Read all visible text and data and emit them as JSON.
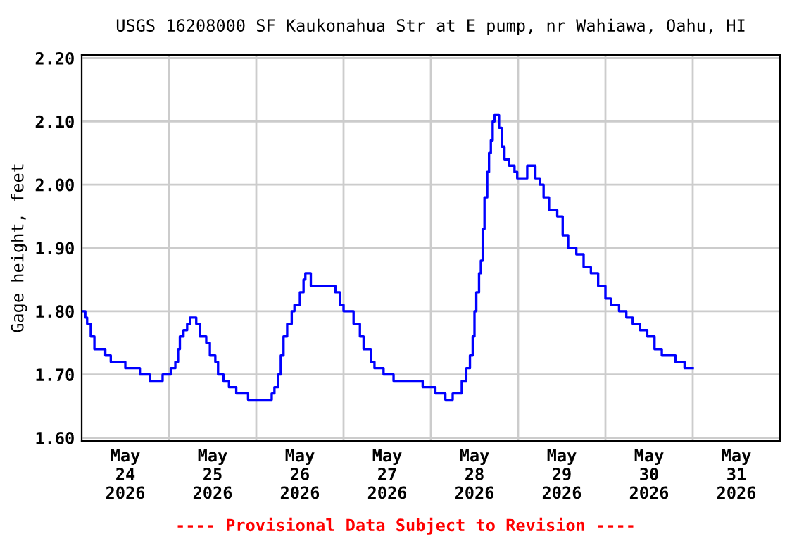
{
  "chart_data": {
    "type": "step",
    "title": "USGS 16208000 SF Kaukonahua Str at E pump, nr Wahiawa, Oahu, HI",
    "ylabel": "Gage height, feet",
    "annotations": [
      "---- Provisional Data Subject to Revision ----"
    ],
    "x": [
      "2026-05-24T00:00",
      "2026-05-24T01:00",
      "2026-05-24T01:30",
      "2026-05-24T02:30",
      "2026-05-24T03:30",
      "2026-05-24T06:15",
      "2026-05-24T06:30",
      "2026-05-24T08:00",
      "2026-05-24T12:00",
      "2026-05-24T15:30",
      "2026-05-24T16:00",
      "2026-05-24T18:45",
      "2026-05-24T22:00",
      "2026-05-24T22:15",
      "2026-05-25T00:15",
      "2026-05-25T00:30",
      "2026-05-25T01:45",
      "2026-05-25T02:30",
      "2026-05-25T03:00",
      "2026-05-25T04:00",
      "2026-05-25T05:00",
      "2026-05-25T05:45",
      "2026-05-25T07:15",
      "2026-05-25T07:30",
      "2026-05-25T08:30",
      "2026-05-25T10:15",
      "2026-05-25T11:15",
      "2026-05-25T12:45",
      "2026-05-25T13:30",
      "2026-05-25T15:00",
      "2026-05-25T16:30",
      "2026-05-25T18:30",
      "2026-05-25T21:45",
      "2026-05-26T00:45",
      "2026-05-26T03:15",
      "2026-05-26T04:15",
      "2026-05-26T05:00",
      "2026-05-26T06:00",
      "2026-05-26T06:45",
      "2026-05-26T07:30",
      "2026-05-26T08:30",
      "2026-05-26T09:45",
      "2026-05-26T10:30",
      "2026-05-26T12:00",
      "2026-05-26T13:00",
      "2026-05-26T13:30",
      "2026-05-26T14:15",
      "2026-05-26T15:00",
      "2026-05-26T21:15",
      "2026-05-26T21:45",
      "2026-05-26T23:00",
      "2026-05-27T00:00",
      "2026-05-27T01:45",
      "2026-05-27T02:45",
      "2026-05-27T04:30",
      "2026-05-27T05:30",
      "2026-05-27T07:30",
      "2026-05-27T08:30",
      "2026-05-27T11:00",
      "2026-05-27T13:45",
      "2026-05-27T19:00",
      "2026-05-27T21:45",
      "2026-05-28T01:15",
      "2026-05-28T04:00",
      "2026-05-28T05:15",
      "2026-05-28T06:00",
      "2026-05-28T07:15",
      "2026-05-28T08:30",
      "2026-05-28T09:45",
      "2026-05-28T10:45",
      "2026-05-28T11:30",
      "2026-05-28T12:00",
      "2026-05-28T12:30",
      "2026-05-28T13:15",
      "2026-05-28T13:45",
      "2026-05-28T14:15",
      "2026-05-28T14:45",
      "2026-05-28T15:30",
      "2026-05-28T16:00",
      "2026-05-28T16:30",
      "2026-05-28T17:00",
      "2026-05-28T17:30",
      "2026-05-28T18:15",
      "2026-05-28T18:45",
      "2026-05-28T19:30",
      "2026-05-28T20:15",
      "2026-05-28T21:30",
      "2026-05-28T23:00",
      "2026-05-28T23:45",
      "2026-05-29T02:00",
      "2026-05-29T02:30",
      "2026-05-29T04:00",
      "2026-05-29T04:45",
      "2026-05-29T06:00",
      "2026-05-29T07:00",
      "2026-05-29T08:30",
      "2026-05-29T10:45",
      "2026-05-29T12:15",
      "2026-05-29T13:45",
      "2026-05-29T16:00",
      "2026-05-29T18:00",
      "2026-05-29T20:00",
      "2026-05-29T22:00",
      "2026-05-30T00:00",
      "2026-05-30T01:30",
      "2026-05-30T03:45",
      "2026-05-30T05:45",
      "2026-05-30T07:30",
      "2026-05-30T09:30",
      "2026-05-30T11:30",
      "2026-05-30T13:30",
      "2026-05-30T15:30",
      "2026-05-30T17:15",
      "2026-05-30T19:15",
      "2026-05-30T21:45",
      "2026-05-31T00:00"
    ],
    "series": [
      {
        "color": "#0000ff",
        "values": [
          1.8,
          1.79,
          1.78,
          1.76,
          1.74,
          1.74,
          1.73,
          1.72,
          1.71,
          1.71,
          1.7,
          1.69,
          1.69,
          1.7,
          1.7,
          1.71,
          1.72,
          1.74,
          1.76,
          1.77,
          1.78,
          1.79,
          1.79,
          1.78,
          1.76,
          1.75,
          1.73,
          1.72,
          1.7,
          1.69,
          1.68,
          1.67,
          1.66,
          1.66,
          1.66,
          1.67,
          1.68,
          1.7,
          1.73,
          1.76,
          1.78,
          1.8,
          1.81,
          1.83,
          1.85,
          1.86,
          1.86,
          1.84,
          1.84,
          1.83,
          1.81,
          1.8,
          1.8,
          1.78,
          1.76,
          1.74,
          1.72,
          1.71,
          1.7,
          1.69,
          1.69,
          1.68,
          1.67,
          1.66,
          1.66,
          1.67,
          1.67,
          1.69,
          1.71,
          1.73,
          1.76,
          1.8,
          1.83,
          1.86,
          1.88,
          1.93,
          1.98,
          2.02,
          2.05,
          2.07,
          2.1,
          2.11,
          2.11,
          2.09,
          2.06,
          2.04,
          2.03,
          2.02,
          2.01,
          2.01,
          2.03,
          2.03,
          2.01,
          2.0,
          1.98,
          1.96,
          1.95,
          1.92,
          1.9,
          1.89,
          1.87,
          1.86,
          1.84,
          1.82,
          1.81,
          1.8,
          1.79,
          1.78,
          1.77,
          1.76,
          1.74,
          1.73,
          1.73,
          1.72,
          1.71,
          1.71
        ]
      }
    ],
    "xlim": [
      "2026-05-24T00:00",
      "2026-06-01T00:00"
    ],
    "xticks": [
      {
        "value": "2026-05-24T00:00",
        "label": null
      },
      {
        "value": "2026-05-24T12:00",
        "label": "May\n24\n2026"
      },
      {
        "value": "2026-05-25T00:00",
        "label": null
      },
      {
        "value": "2026-05-25T12:00",
        "label": "May\n25\n2026"
      },
      {
        "value": "2026-05-26T00:00",
        "label": null
      },
      {
        "value": "2026-05-26T12:00",
        "label": "May\n26\n2026"
      },
      {
        "value": "2026-05-27T00:00",
        "label": null
      },
      {
        "value": "2026-05-27T12:00",
        "label": "May\n27\n2026"
      },
      {
        "value": "2026-05-28T00:00",
        "label": null
      },
      {
        "value": "2026-05-28T12:00",
        "label": "May\n28\n2026"
      },
      {
        "value": "2026-05-29T00:00",
        "label": null
      },
      {
        "value": "2026-05-29T12:00",
        "label": "May\n29\n2026"
      },
      {
        "value": "2026-05-30T00:00",
        "label": null
      },
      {
        "value": "2026-05-30T12:00",
        "label": "May\n30\n2026"
      },
      {
        "value": "2026-05-31T00:00",
        "label": null
      },
      {
        "value": "2026-05-31T12:00",
        "label": "May\n31\n2026"
      },
      {
        "value": "2026-06-01T00:00",
        "label": null
      }
    ],
    "ylim": [
      1.595,
      2.205
    ],
    "yticks": [
      {
        "value": 1.6,
        "label": "1.60"
      },
      {
        "value": 1.7,
        "label": "1.70"
      },
      {
        "value": 1.8,
        "label": "1.80"
      },
      {
        "value": 1.9,
        "label": "1.90"
      },
      {
        "value": 2.0,
        "label": "2.00"
      },
      {
        "value": 2.1,
        "label": "2.10"
      },
      {
        "value": 2.2,
        "label": "2.20"
      }
    ],
    "grid": true,
    "marker": "none",
    "line_style": "solid",
    "legend": false
  }
}
